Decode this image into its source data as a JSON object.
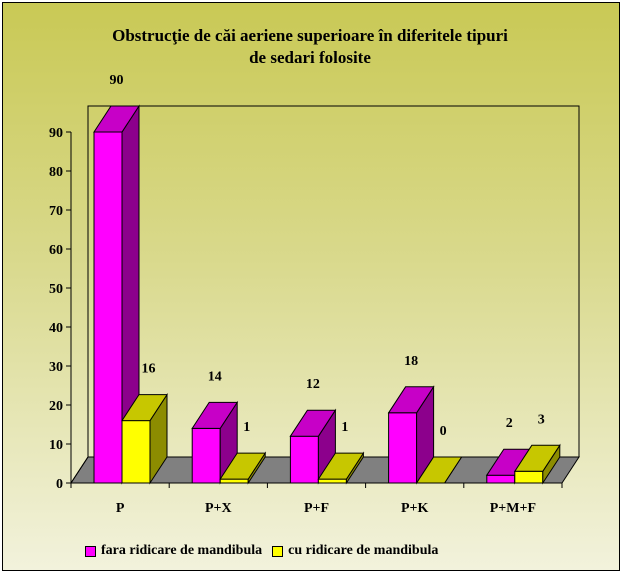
{
  "chart_data": {
    "type": "bar",
    "title_line1": "Obstrucţie de căi aeriene superioare în diferitele tipuri",
    "title_line2": "de sedari folosite",
    "categories": [
      "P",
      "P+X",
      "P+F",
      "P+K",
      "P+M+F"
    ],
    "series": [
      {
        "name": "fara ridicare de mandibula",
        "values": [
          90,
          14,
          12,
          18,
          2
        ],
        "color": "#ff00ff"
      },
      {
        "name": "cu ridicare de mandibula",
        "values": [
          16,
          1,
          1,
          0,
          3
        ],
        "color": "#ffff00"
      }
    ],
    "ylim": [
      0,
      90
    ],
    "yticks": [
      0,
      10,
      20,
      30,
      40,
      50,
      60,
      70,
      80,
      90
    ],
    "grid": false,
    "legend_position": "bottom",
    "style": "3d-bar"
  }
}
